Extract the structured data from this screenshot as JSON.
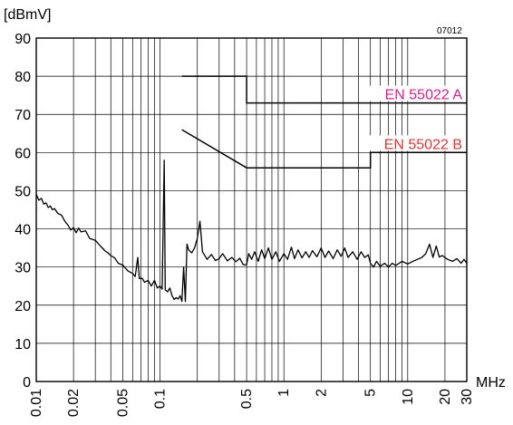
{
  "chart_data": {
    "type": "line",
    "title": "",
    "figure_id": "07012",
    "xlabel": "MHz",
    "ylabel": "[dBmV]",
    "x_scale": "log",
    "xlim": [
      0.01,
      30
    ],
    "ylim": [
      0,
      90
    ],
    "grid": true,
    "y_ticks": [
      "0",
      "10",
      "20",
      "30",
      "40",
      "50",
      "60",
      "70",
      "80",
      "90"
    ],
    "x_tick_labels": [
      {
        "value": 0.01,
        "label": "0.01"
      },
      {
        "value": 0.02,
        "label": "0.02"
      },
      {
        "value": 0.05,
        "label": "0.05"
      },
      {
        "value": 0.1,
        "label": "0.1"
      },
      {
        "value": 0.5,
        "label": "0.5"
      },
      {
        "value": 1,
        "label": "1"
      },
      {
        "value": 2,
        "label": "2"
      },
      {
        "value": 5,
        "label": "5"
      },
      {
        "value": 10,
        "label": "10"
      },
      {
        "value": 20,
        "label": "20"
      },
      {
        "value": 30,
        "label": "30"
      }
    ],
    "limit_lines": [
      {
        "name": "EN 55022 A",
        "color": "#e0198c",
        "points": [
          [
            0.15,
            80
          ],
          [
            0.5,
            80
          ],
          [
            0.5,
            73
          ],
          [
            30,
            73
          ]
        ]
      },
      {
        "name": "EN 55022 B",
        "color": "#e8322c",
        "points": [
          [
            0.15,
            66
          ],
          [
            0.5,
            56
          ],
          [
            5,
            56
          ],
          [
            5,
            60
          ],
          [
            30,
            60
          ]
        ]
      }
    ],
    "series": [
      {
        "color": "#000000",
        "points": [
          [
            0.01,
            49
          ],
          [
            0.0105,
            47.5
          ],
          [
            0.011,
            48
          ],
          [
            0.0115,
            46.5
          ],
          [
            0.012,
            46.8
          ],
          [
            0.0125,
            45.6
          ],
          [
            0.013,
            46
          ],
          [
            0.0135,
            45
          ],
          [
            0.014,
            45.3
          ],
          [
            0.015,
            44
          ],
          [
            0.016,
            43.6
          ],
          [
            0.017,
            42
          ],
          [
            0.018,
            41
          ],
          [
            0.019,
            39.7
          ],
          [
            0.02,
            40.3
          ],
          [
            0.021,
            39
          ],
          [
            0.022,
            40.2
          ],
          [
            0.023,
            39.2
          ],
          [
            0.025,
            39.5
          ],
          [
            0.027,
            37.5
          ],
          [
            0.03,
            37
          ],
          [
            0.033,
            35.5
          ],
          [
            0.036,
            34.2
          ],
          [
            0.038,
            33.7
          ],
          [
            0.04,
            33
          ],
          [
            0.043,
            32.4
          ],
          [
            0.046,
            31
          ],
          [
            0.05,
            30.5
          ],
          [
            0.055,
            29
          ],
          [
            0.06,
            28.3
          ],
          [
            0.063,
            27.5
          ],
          [
            0.066,
            32.5
          ],
          [
            0.068,
            27
          ],
          [
            0.072,
            27
          ],
          [
            0.075,
            26
          ],
          [
            0.08,
            26.5
          ],
          [
            0.085,
            25
          ],
          [
            0.09,
            26.5
          ],
          [
            0.095,
            24.5
          ],
          [
            0.1,
            25
          ],
          [
            0.104,
            24.2
          ],
          [
            0.108,
            58
          ],
          [
            0.11,
            24
          ],
          [
            0.115,
            23.5
          ],
          [
            0.12,
            24.5
          ],
          [
            0.125,
            22.5
          ],
          [
            0.13,
            21.5
          ],
          [
            0.135,
            22
          ],
          [
            0.14,
            21.6
          ],
          [
            0.145,
            22.5
          ],
          [
            0.15,
            21
          ],
          [
            0.155,
            30
          ],
          [
            0.16,
            21
          ],
          [
            0.165,
            36
          ],
          [
            0.17,
            34.5
          ],
          [
            0.18,
            33.7
          ],
          [
            0.19,
            35
          ],
          [
            0.2,
            37.5
          ],
          [
            0.21,
            42
          ],
          [
            0.22,
            34
          ],
          [
            0.24,
            32
          ],
          [
            0.26,
            33.3
          ],
          [
            0.28,
            31.7
          ],
          [
            0.3,
            32.2
          ],
          [
            0.32,
            33.5
          ],
          [
            0.35,
            31.6
          ],
          [
            0.38,
            32.5
          ],
          [
            0.41,
            31.4
          ],
          [
            0.44,
            32.3
          ],
          [
            0.47,
            30.6
          ],
          [
            0.5,
            30.6
          ],
          [
            0.52,
            33.5
          ],
          [
            0.55,
            32
          ],
          [
            0.58,
            34
          ],
          [
            0.62,
            31.5
          ],
          [
            0.66,
            34.5
          ],
          [
            0.7,
            32.2
          ],
          [
            0.75,
            35
          ],
          [
            0.8,
            32
          ],
          [
            0.86,
            34
          ],
          [
            0.92,
            31.5
          ],
          [
            1.0,
            33.5
          ],
          [
            1.07,
            32
          ],
          [
            1.15,
            35.2
          ],
          [
            1.22,
            32.2
          ],
          [
            1.3,
            34.5
          ],
          [
            1.4,
            32.4
          ],
          [
            1.5,
            34
          ],
          [
            1.6,
            32.5
          ],
          [
            1.7,
            34.3
          ],
          [
            1.85,
            32.7
          ],
          [
            2.0,
            35
          ],
          [
            2.15,
            32.5
          ],
          [
            2.3,
            34.2
          ],
          [
            2.5,
            32.2
          ],
          [
            2.7,
            34.5
          ],
          [
            2.9,
            32.8
          ],
          [
            3.1,
            35
          ],
          [
            3.3,
            32.5
          ],
          [
            3.6,
            34
          ],
          [
            3.9,
            32
          ],
          [
            4.2,
            34
          ],
          [
            4.5,
            32.5
          ],
          [
            4.8,
            33.2
          ],
          [
            5.0,
            31
          ],
          [
            5.3,
            30
          ],
          [
            5.6,
            31.5
          ],
          [
            6.0,
            30.2
          ],
          [
            6.5,
            31
          ],
          [
            7.0,
            30
          ],
          [
            7.5,
            31
          ],
          [
            8.0,
            30.4
          ],
          [
            9.0,
            31.5
          ],
          [
            10,
            30.8
          ],
          [
            11,
            31.5
          ],
          [
            12,
            32
          ],
          [
            13,
            32.5
          ],
          [
            14,
            33.5
          ],
          [
            15,
            36
          ],
          [
            16,
            32.5
          ],
          [
            17,
            35.5
          ],
          [
            18,
            32.6
          ],
          [
            19,
            33
          ],
          [
            21,
            32
          ],
          [
            23,
            31.5
          ],
          [
            25,
            32.2
          ],
          [
            27,
            31
          ],
          [
            28.5,
            32
          ],
          [
            30,
            31
          ]
        ]
      }
    ]
  }
}
